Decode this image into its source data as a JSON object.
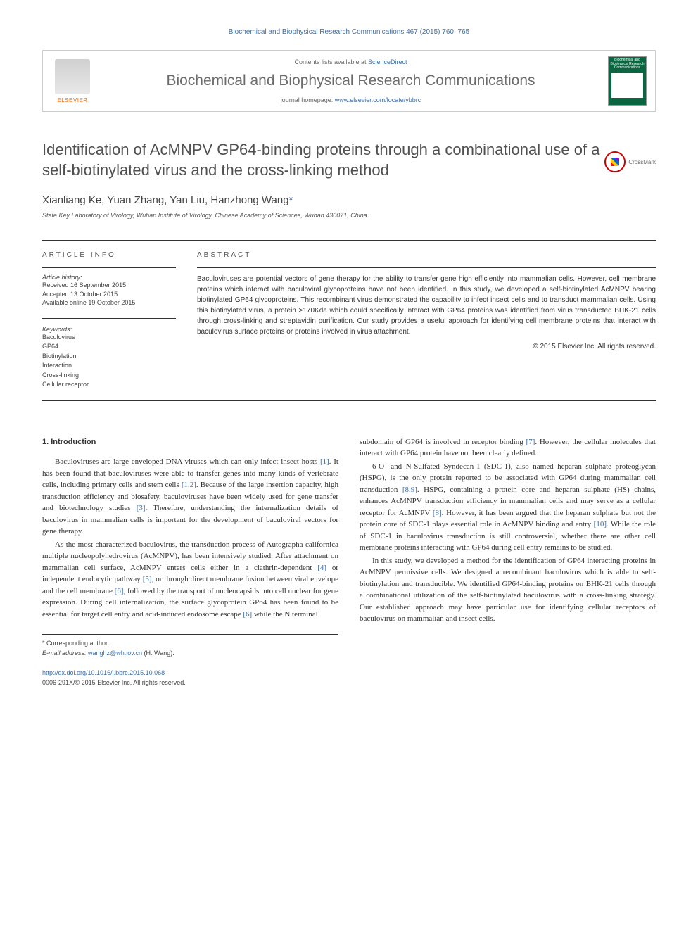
{
  "header": {
    "citation": "Biochemical and Biophysical Research Communications 467 (2015) 760–765",
    "contents_text": "Contents lists available at ",
    "contents_link": "ScienceDirect",
    "journal_title": "Biochemical and Biophysical Research Communications",
    "homepage_text": "journal homepage: ",
    "homepage_link": "www.elsevier.com/locate/ybbrc",
    "elsevier_label": "ELSEVIER",
    "cover_label": "Biochemical and Biophysical Research Communications",
    "crossmark_label": "CrossMark"
  },
  "article": {
    "title": "Identification of AcMNPV GP64-binding proteins through a combinational use of a self-biotinylated virus and the cross-linking method",
    "authors": "Xianliang Ke, Yuan Zhang, Yan Liu, Hanzhong Wang",
    "corresponding_mark": "*",
    "affiliation": "State Key Laboratory of Virology, Wuhan Institute of Virology, Chinese Academy of Sciences, Wuhan 430071, China"
  },
  "article_info": {
    "label": "ARTICLE INFO",
    "history_label": "Article history:",
    "received": "Received 16 September 2015",
    "accepted": "Accepted 13 October 2015",
    "available": "Available online 19 October 2015",
    "keywords_label": "Keywords:",
    "keywords": [
      "Baculovirus",
      "GP64",
      "Biotinylation",
      "Interaction",
      "Cross-linking",
      "Cellular receptor"
    ]
  },
  "abstract": {
    "label": "ABSTRACT",
    "text": "Baculoviruses are potential vectors of gene therapy for the ability to transfer gene high efficiently into mammalian cells. However, cell membrane proteins which interact with baculoviral glycoproteins have not been identified. In this study, we developed a self-biotinylated AcMNPV bearing biotinylated GP64 glycoproteins. This recombinant virus demonstrated the capability to infect insect cells and to transduct mammalian cells. Using this biotinylated virus, a protein >170Kda which could specifically interact with GP64 proteins was identified from virus transducted BHK-21 cells through cross-linking and streptavidin purification. Our study provides a useful approach for identifying cell membrane proteins that interact with baculovirus surface proteins or proteins involved in virus attachment.",
    "copyright": "© 2015 Elsevier Inc. All rights reserved."
  },
  "body": {
    "intro_heading": "1. Introduction",
    "col1_p1": "Baculoviruses are large enveloped DNA viruses which can only infect insect hosts [1]. It has been found that baculoviruses were able to transfer genes into many kinds of vertebrate cells, including primary cells and stem cells [1,2]. Because of the large insertion capacity, high transduction efficiency and biosafety, baculoviruses have been widely used for gene transfer and biotechnology studies [3]. Therefore, understanding the internalization details of baculovirus in mammalian cells is important for the development of baculoviral vectors for gene therapy.",
    "col1_p2": "As the most characterized baculovirus, the transduction process of Autographa californica multiple nucleopolyhedrovirus (AcMNPV), has been intensively studied. After attachment on mammalian cell surface, AcMNPV enters cells either in a clathrin-dependent [4] or independent endocytic pathway [5], or through direct membrane fusion between viral envelope and the cell membrane [6], followed by the transport of nucleocapsids into cell nuclear for gene expression. During cell internalization, the surface glycoprotein GP64 has been found to be essential for target cell entry and acid-induced endosome escape [6] while the N terminal",
    "col2_p1": "subdomain of GP64 is involved in receptor binding [7]. However, the cellular molecules that interact with GP64 protein have not been clearly defined.",
    "col2_p2": "6-O- and N-Sulfated Syndecan-1 (SDC-1), also named heparan sulphate proteoglycan (HSPG), is the only protein reported to be associated with GP64 during mammalian cell transduction [8,9]. HSPG, containing a protein core and heparan sulphate (HS) chains, enhances AcMNPV transduction efficiency in mammalian cells and may serve as a cellular receptor for AcMNPV [8]. However, it has been argued that the heparan sulphate but not the protein core of SDC-1 plays essential role in AcMNPV binding and entry [10]. While the role of SDC-1 in baculovirus transduction is still controversial, whether there are other cell membrane proteins interacting with GP64 during cell entry remains to be studied.",
    "col2_p3": "In this study, we developed a method for the identification of GP64 interacting proteins in AcMNPV permissive cells. We designed a recombinant baculovirus which is able to self-biotinylation and transducible. We identified GP64-binding proteins on BHK-21 cells through a combinational utilization of the self-biotinylated baculovirus with a cross-linking strategy. Our established approach may have particular use for identifying cellular receptors of baculovirus on mammalian and insect cells."
  },
  "footer": {
    "corresponding_label": "* Corresponding author.",
    "email_label": "E-mail address: ",
    "email": "wanghz@wh.iov.cn",
    "email_name": " (H. Wang).",
    "doi": "http://dx.doi.org/10.1016/j.bbrc.2015.10.068",
    "issn": "0006-291X/© 2015 Elsevier Inc. All rights reserved."
  },
  "colors": {
    "link": "#3f6fa8",
    "elsevier_orange": "#ff6600",
    "cover_green": "#0a6640",
    "text": "#333333",
    "heading_gray": "#505050"
  },
  "typography": {
    "title_fontsize": 22,
    "body_fontsize": 11,
    "abstract_fontsize": 10,
    "small_fontsize": 9
  }
}
